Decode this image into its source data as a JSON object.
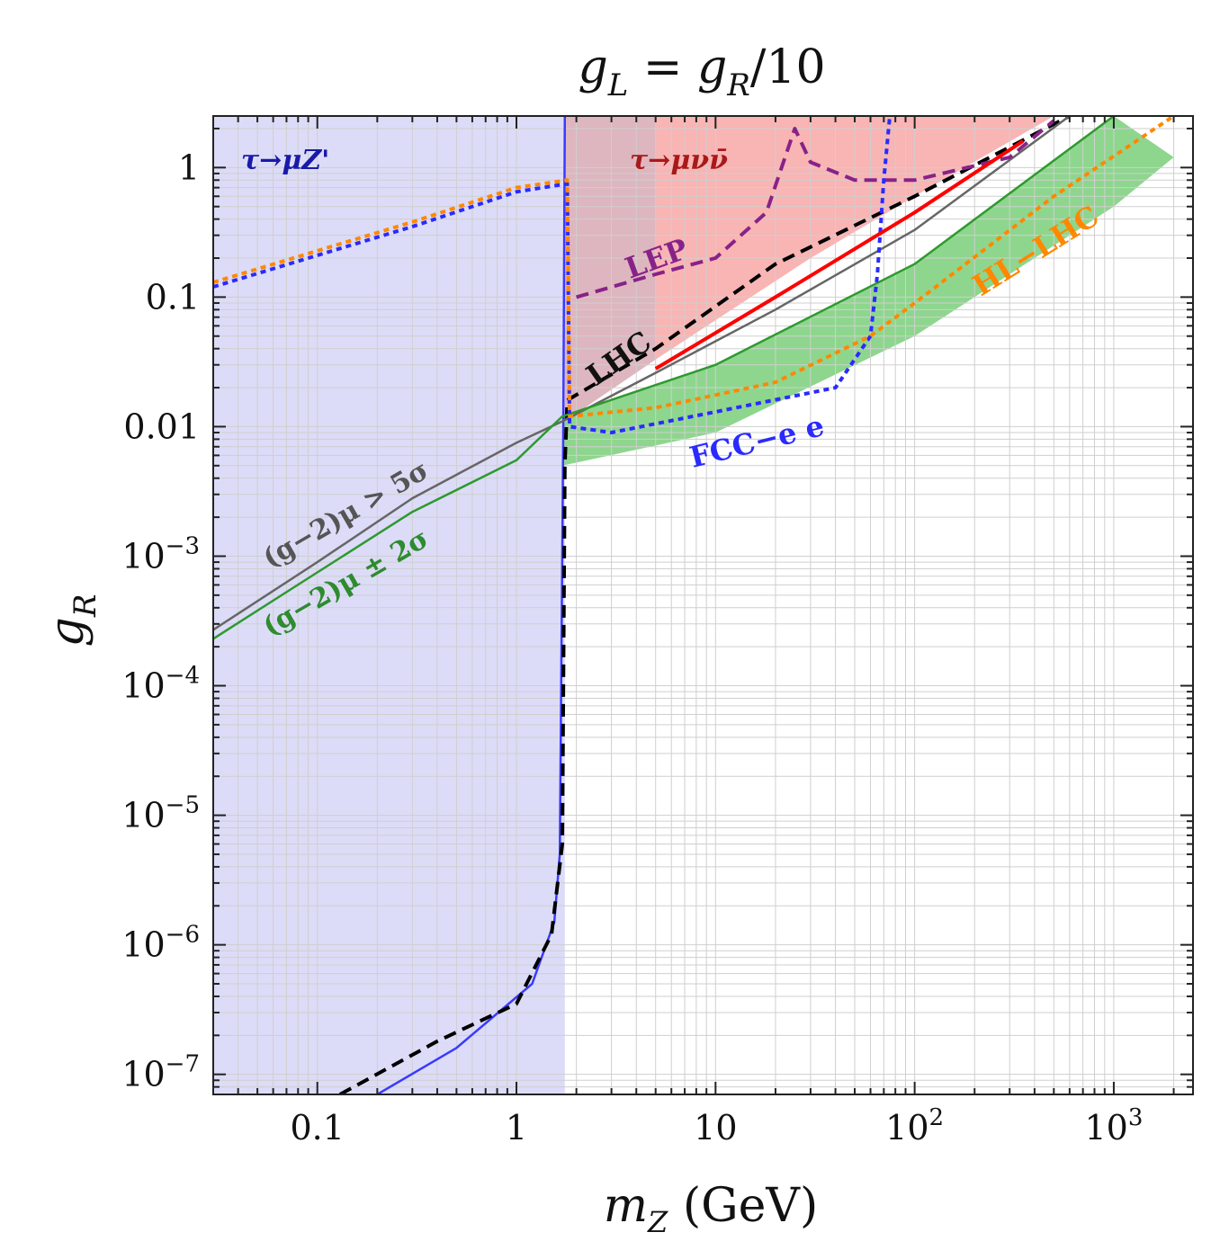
{
  "chart_data": {
    "type": "line",
    "title": "g'L = g'R/10",
    "title_parts": {
      "g1": "g",
      "sub1": "L",
      "eq": "=",
      "g2": "g",
      "sub2": "R",
      "tail": "/10"
    },
    "xlabel": "m_Z' (GeV)",
    "xlabel_parts": {
      "m": "m",
      "sub": "Z",
      "unit": "(GeV)"
    },
    "ylabel": "g'R",
    "ylabel_parts": {
      "g": "g",
      "sub": "R"
    },
    "x_scale": "log",
    "y_scale": "log",
    "xlim": [
      0.03,
      2500
    ],
    "ylim": [
      7e-08,
      2.5
    ],
    "x_ticks": [
      {
        "value": 0.1,
        "label": "0.1"
      },
      {
        "value": 1,
        "label": "1"
      },
      {
        "value": 10,
        "label": "10"
      },
      {
        "value": 100,
        "label": "10",
        "sup": "2"
      },
      {
        "value": 1000,
        "label": "10",
        "sup": "3"
      }
    ],
    "y_ticks": [
      {
        "value": 1,
        "label": "1"
      },
      {
        "value": 0.1,
        "label": "0.1"
      },
      {
        "value": 0.01,
        "label": "0.01"
      },
      {
        "value": 0.001,
        "label": "10",
        "sup": "−3"
      },
      {
        "value": 0.0001,
        "label": "10",
        "sup": "−4"
      },
      {
        "value": 1e-05,
        "label": "10",
        "sup": "−5"
      },
      {
        "value": 1e-06,
        "label": "10",
        "sup": "−6"
      },
      {
        "value": 1e-07,
        "label": "10",
        "sup": "−7"
      }
    ],
    "grid": true,
    "regions": [
      {
        "name": "tau-to-mu-Zprime-excluded",
        "color": "#dcdcf8",
        "x_range": [
          0.03,
          1.75
        ],
        "note": "excluded region"
      },
      {
        "name": "tau-to-mu-nu-nu-excluded",
        "color": "#f9b4b4",
        "x_range": [
          1.75,
          1000
        ],
        "lower_edge": [
          [
            1.75,
            0.011
          ],
          [
            5,
            0.033
          ],
          [
            30,
            0.2
          ],
          [
            100,
            0.6
          ],
          [
            500,
            2.5
          ]
        ]
      },
      {
        "name": "g-2-2sigma-band",
        "color": "#8ed68e",
        "lower": [
          [
            1.7,
            0.005
          ],
          [
            10,
            0.009
          ],
          [
            100,
            0.05
          ],
          [
            1000,
            0.5
          ],
          [
            2000,
            1.2
          ]
        ],
        "upper": [
          [
            1.7,
            0.012
          ],
          [
            10,
            0.03
          ],
          [
            100,
            0.18
          ],
          [
            1000,
            2.5
          ]
        ]
      }
    ],
    "series": [
      {
        "name": "tau→μZ' boundary",
        "color": "#3a3aff",
        "style": "solid",
        "points": [
          [
            0.2,
            7e-08
          ],
          [
            0.5,
            1.6e-07
          ],
          [
            1.2,
            5e-07
          ],
          [
            1.55,
            1.5e-06
          ],
          [
            1.65,
            5e-06
          ],
          [
            1.72,
            0.01
          ],
          [
            1.75,
            2.5
          ]
        ]
      },
      {
        "name": "LHC",
        "color": "#000000",
        "style": "dashed",
        "points": [
          [
            0.13,
            7e-08
          ],
          [
            0.4,
            1.8e-07
          ],
          [
            1.0,
            3.5e-07
          ],
          [
            1.5,
            1.2e-06
          ],
          [
            1.7,
            6e-06
          ],
          [
            1.75,
            0.005
          ],
          [
            1.8,
            0.016
          ],
          [
            5,
            0.04
          ],
          [
            20,
            0.18
          ],
          [
            100,
            0.6
          ],
          [
            600,
            2.5
          ]
        ]
      },
      {
        "name": "(g-2)μ > 5σ",
        "color": "#666666",
        "style": "solid",
        "points": [
          [
            0.03,
            0.00027
          ],
          [
            0.1,
            0.0009
          ],
          [
            0.3,
            0.0028
          ],
          [
            1,
            0.0075
          ],
          [
            1.7,
            0.011
          ],
          [
            5,
            0.026
          ],
          [
            20,
            0.08
          ],
          [
            100,
            0.33
          ],
          [
            600,
            2.5
          ]
        ]
      },
      {
        "name": "(g-2)μ ± 2σ",
        "color": "#2e9a2e",
        "style": "solid",
        "points": [
          [
            0.03,
            0.00023
          ],
          [
            0.1,
            0.00075
          ],
          [
            0.3,
            0.0022
          ],
          [
            1,
            0.0055
          ],
          [
            1.7,
            0.012
          ],
          [
            10,
            0.03
          ],
          [
            100,
            0.18
          ],
          [
            1000,
            2.5
          ]
        ]
      },
      {
        "name": "LEP",
        "color": "#882288",
        "style": "dashed",
        "points": [
          [
            2,
            0.1
          ],
          [
            5,
            0.15
          ],
          [
            10,
            0.2
          ],
          [
            18,
            0.45
          ],
          [
            25,
            2.0
          ],
          [
            30,
            1.1
          ],
          [
            50,
            0.8
          ],
          [
            100,
            0.8
          ],
          [
            300,
            1.2
          ],
          [
            500,
            2.3
          ]
        ]
      },
      {
        "name": "FCC-ee",
        "color": "#2a2aff",
        "style": "dotted",
        "points": [
          [
            0.03,
            0.12
          ],
          [
            0.3,
            0.35
          ],
          [
            1,
            0.65
          ],
          [
            1.8,
            0.75
          ],
          [
            1.85,
            0.01
          ],
          [
            3,
            0.009
          ],
          [
            10,
            0.013
          ],
          [
            40,
            0.02
          ],
          [
            60,
            0.05
          ],
          [
            65,
            0.15
          ],
          [
            70,
            0.8
          ],
          [
            75,
            2.5
          ]
        ]
      },
      {
        "name": "HL-LHC",
        "color": "#ff8800",
        "style": "dotted",
        "points": [
          [
            0.03,
            0.13
          ],
          [
            0.3,
            0.38
          ],
          [
            1,
            0.7
          ],
          [
            1.8,
            0.8
          ],
          [
            1.85,
            0.012
          ],
          [
            5,
            0.014
          ],
          [
            20,
            0.022
          ],
          [
            60,
            0.05
          ],
          [
            100,
            0.09
          ],
          [
            500,
            0.6
          ],
          [
            2000,
            2.5
          ]
        ]
      },
      {
        "name": "tau→μνν̄ best fit",
        "color": "#ff0000",
        "style": "solid",
        "points": [
          [
            5,
            0.028
          ],
          [
            20,
            0.1
          ],
          [
            100,
            0.45
          ],
          [
            350,
            1.6
          ]
        ]
      }
    ],
    "annotations": [
      {
        "text": "τ→μZ'",
        "color": "#1a1aa8"
      },
      {
        "text": "τ→μνν̄",
        "color": "#a81a1a"
      },
      {
        "text": "LEP",
        "color": "#882288"
      },
      {
        "text": "LHC",
        "color": "#111111"
      },
      {
        "text": "FCC−e e",
        "color": "#2a2aff"
      },
      {
        "text": "HL−LHC",
        "color": "#ff8800"
      },
      {
        "text": "(g−2)μ > 5σ",
        "color": "#555555"
      },
      {
        "text": "(g−2)μ ± 2σ",
        "color": "#2e8b2e"
      }
    ]
  }
}
